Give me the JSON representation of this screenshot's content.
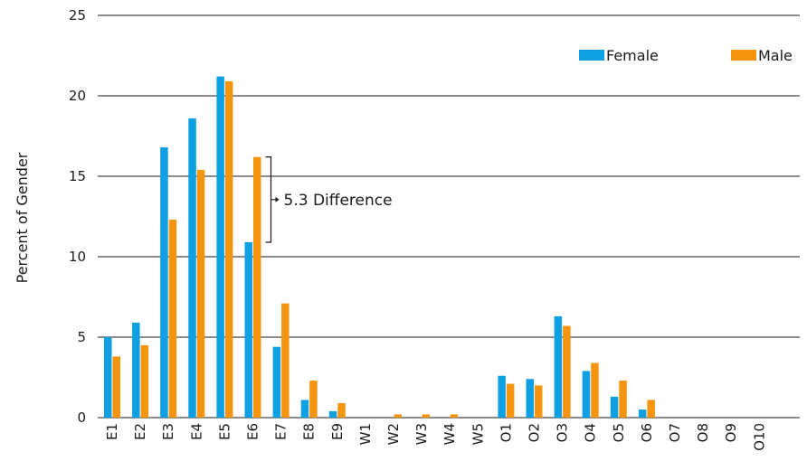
{
  "chart_data": {
    "type": "bar",
    "title": "",
    "xlabel": "",
    "ylabel": "Percent of Gender",
    "ylim": [
      0,
      25
    ],
    "yticks": [
      0,
      5,
      10,
      15,
      20,
      25
    ],
    "grid": "horizontal",
    "legend_position": "top-right",
    "categories": [
      "E1",
      "E2",
      "E3",
      "E4",
      "E5",
      "E6",
      "E7",
      "E8",
      "E9",
      "W1",
      "W2",
      "W3",
      "W4",
      "W5",
      "O1",
      "O2",
      "O3",
      "O4",
      "O5",
      "O6",
      "O7",
      "O8",
      "O9",
      "O10"
    ],
    "series": [
      {
        "name": "Female",
        "color": "#0f9fe3",
        "values": [
          5.0,
          5.9,
          16.8,
          18.6,
          21.2,
          10.9,
          4.4,
          1.1,
          0.4,
          0,
          0,
          0,
          0,
          0,
          2.6,
          2.4,
          6.3,
          2.9,
          1.3,
          0.5,
          0,
          0,
          0,
          0
        ]
      },
      {
        "name": "Male",
        "color": "#f5940f",
        "values": [
          3.8,
          4.5,
          12.3,
          15.4,
          20.9,
          16.2,
          7.1,
          2.3,
          0.9,
          0,
          0.2,
          0.2,
          0.2,
          0,
          2.1,
          2.0,
          5.7,
          3.4,
          2.3,
          1.1,
          0,
          0,
          0,
          0
        ]
      }
    ],
    "annotations": [
      {
        "text": "5.3 Difference",
        "category": "E6",
        "from": 10.9,
        "to": 16.2
      }
    ]
  }
}
